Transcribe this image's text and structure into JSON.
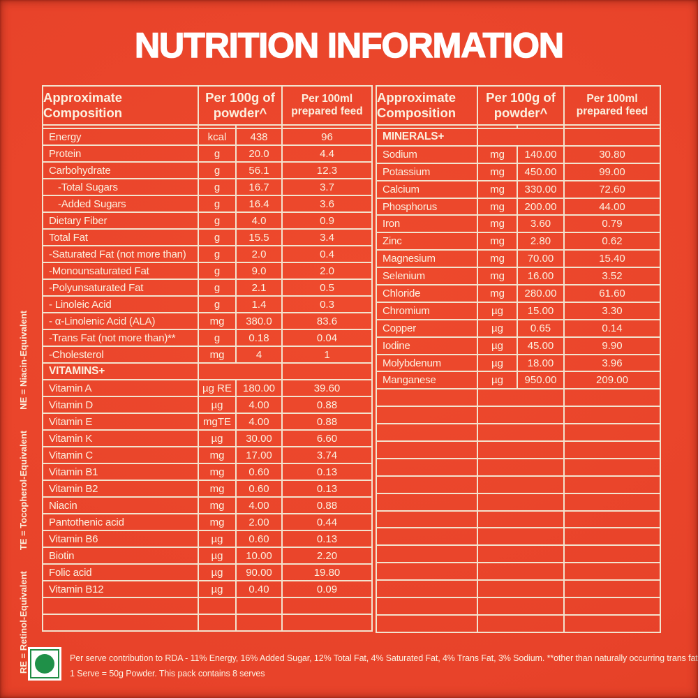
{
  "title": "NUTRITION INFORMATION",
  "colors": {
    "background": "#E8432A",
    "grid_line": "#F3E3CE",
    "text": "#FCF1E0",
    "title": "#FFFFFF",
    "veg_mark_green": "#1F9048"
  },
  "left_table": {
    "header": {
      "composition": "Approximate\nComposition",
      "per_100g": "Per 100g of\npowder^",
      "per_100ml": "Per 100ml\nprepared feed"
    },
    "rows": [
      {
        "type": "data",
        "name": "Energy",
        "unit": "kcal",
        "per_100g": "438",
        "per_100ml": "96"
      },
      {
        "type": "data",
        "name": "Protein",
        "unit": "g",
        "per_100g": "20.0",
        "per_100ml": "4.4"
      },
      {
        "type": "data",
        "name": "Carbohydrate",
        "unit": "g",
        "per_100g": "56.1",
        "per_100ml": "12.3"
      },
      {
        "type": "data",
        "name": "-Total Sugars",
        "unit": "g",
        "per_100g": "16.7",
        "per_100ml": "3.7",
        "indent": true
      },
      {
        "type": "data",
        "name": "-Added Sugars",
        "unit": "g",
        "per_100g": "16.4",
        "per_100ml": "3.6",
        "indent": true
      },
      {
        "type": "data",
        "name": "Dietary Fiber",
        "unit": "g",
        "per_100g": "4.0",
        "per_100ml": "0.9"
      },
      {
        "type": "data",
        "name": "Total Fat",
        "unit": "g",
        "per_100g": "15.5",
        "per_100ml": "3.4"
      },
      {
        "type": "data",
        "name": "-Saturated Fat (not more than)",
        "unit": "g",
        "per_100g": "2.0",
        "per_100ml": "0.4"
      },
      {
        "type": "data",
        "name": "-Monounsaturated Fat",
        "unit": "g",
        "per_100g": "9.0",
        "per_100ml": "2.0"
      },
      {
        "type": "data",
        "name": "-Polyunsaturated Fat",
        "unit": "g",
        "per_100g": "2.1",
        "per_100ml": "0.5"
      },
      {
        "type": "data",
        "name": "- Linoleic Acid",
        "unit": "g",
        "per_100g": "1.4",
        "per_100ml": "0.3"
      },
      {
        "type": "data",
        "name": "- α-Linolenic Acid (ALA)",
        "unit": "mg",
        "per_100g": "380.0",
        "per_100ml": "83.6"
      },
      {
        "type": "data",
        "name": "-Trans Fat (not more than)**",
        "unit": "g",
        "per_100g": "0.18",
        "per_100ml": "0.04"
      },
      {
        "type": "data",
        "name": "-Cholesterol",
        "unit": "mg",
        "per_100g": "4",
        "per_100ml": "1"
      },
      {
        "type": "section",
        "name": "VITAMINS+"
      },
      {
        "type": "data",
        "name": "Vitamin A",
        "unit": "µg RE",
        "per_100g": "180.00",
        "per_100ml": "39.60"
      },
      {
        "type": "data",
        "name": "Vitamin D",
        "unit": "µg",
        "per_100g": "4.00",
        "per_100ml": "0.88"
      },
      {
        "type": "data",
        "name": "Vitamin E",
        "unit": "mgTE",
        "per_100g": "4.00",
        "per_100ml": "0.88"
      },
      {
        "type": "data",
        "name": "Vitamin K",
        "unit": "µg",
        "per_100g": "30.00",
        "per_100ml": "6.60"
      },
      {
        "type": "data",
        "name": "Vitamin C",
        "unit": "mg",
        "per_100g": "17.00",
        "per_100ml": "3.74"
      },
      {
        "type": "data",
        "name": "Vitamin B1",
        "unit": "mg",
        "per_100g": "0.60",
        "per_100ml": "0.13"
      },
      {
        "type": "data",
        "name": "Vitamin B2",
        "unit": "mg",
        "per_100g": "0.60",
        "per_100ml": "0.13"
      },
      {
        "type": "data",
        "name": "Niacin",
        "unit": "mg",
        "per_100g": "4.00",
        "per_100ml": "0.88"
      },
      {
        "type": "data",
        "name": "Pantothenic acid",
        "unit": "mg",
        "per_100g": "2.00",
        "per_100ml": "0.44"
      },
      {
        "type": "data",
        "name": "Vitamin B6",
        "unit": "µg",
        "per_100g": "0.60",
        "per_100ml": "0.13"
      },
      {
        "type": "data",
        "name": "Biotin",
        "unit": "µg",
        "per_100g": "10.00",
        "per_100ml": "2.20"
      },
      {
        "type": "data",
        "name": "Folic acid",
        "unit": "µg",
        "per_100g": "90.00",
        "per_100ml": "19.80"
      },
      {
        "type": "data",
        "name": "Vitamin B12",
        "unit": "µg",
        "per_100g": "0.40",
        "per_100ml": "0.09"
      },
      {
        "type": "empty"
      },
      {
        "type": "empty"
      }
    ]
  },
  "right_table": {
    "header": {
      "composition": "Approximate\nComposition",
      "per_100g": "Per 100g of\npowder^",
      "per_100ml": "Per 100ml\nprepared feed"
    },
    "rows": [
      {
        "type": "section",
        "name": "MINERALS+"
      },
      {
        "type": "data",
        "name": "Sodium",
        "unit": "mg",
        "per_100g": "140.00",
        "per_100ml": "30.80"
      },
      {
        "type": "data",
        "name": "Potassium",
        "unit": "mg",
        "per_100g": "450.00",
        "per_100ml": "99.00"
      },
      {
        "type": "data",
        "name": "Calcium",
        "unit": "mg",
        "per_100g": "330.00",
        "per_100ml": "72.60"
      },
      {
        "type": "data",
        "name": "Phosphorus",
        "unit": "mg",
        "per_100g": "200.00",
        "per_100ml": "44.00"
      },
      {
        "type": "data",
        "name": "Iron",
        "unit": "mg",
        "per_100g": "3.60",
        "per_100ml": "0.79"
      },
      {
        "type": "data",
        "name": "Zinc",
        "unit": "mg",
        "per_100g": "2.80",
        "per_100ml": "0.62"
      },
      {
        "type": "data",
        "name": "Magnesium",
        "unit": "mg",
        "per_100g": "70.00",
        "per_100ml": "15.40"
      },
      {
        "type": "data",
        "name": "Selenium",
        "unit": "mg",
        "per_100g": "16.00",
        "per_100ml": "3.52"
      },
      {
        "type": "data",
        "name": "Chloride",
        "unit": "mg",
        "per_100g": "280.00",
        "per_100ml": "61.60"
      },
      {
        "type": "data",
        "name": "Chromium",
        "unit": "µg",
        "per_100g": "15.00",
        "per_100ml": "3.30"
      },
      {
        "type": "data",
        "name": "Copper",
        "unit": "µg",
        "per_100g": "0.65",
        "per_100ml": "0.14"
      },
      {
        "type": "data",
        "name": "Iodine",
        "unit": "µg",
        "per_100g": "45.00",
        "per_100ml": "9.90"
      },
      {
        "type": "data",
        "name": "Molybdenum",
        "unit": "µg",
        "per_100g": "18.00",
        "per_100ml": "3.96"
      },
      {
        "type": "data",
        "name": "Manganese",
        "unit": "µg",
        "per_100g": "950.00",
        "per_100ml": "209.00"
      },
      {
        "type": "empty"
      },
      {
        "type": "empty"
      },
      {
        "type": "empty"
      },
      {
        "type": "empty"
      },
      {
        "type": "empty"
      },
      {
        "type": "empty"
      },
      {
        "type": "empty"
      },
      {
        "type": "empty"
      },
      {
        "type": "empty"
      },
      {
        "type": "empty"
      },
      {
        "type": "empty"
      },
      {
        "type": "empty"
      },
      {
        "type": "empty"
      },
      {
        "type": "empty"
      }
    ]
  },
  "side_note": {
    "re": "RE = Retinol-Equivalent",
    "te": "TE = Tocopherol-Equivalent",
    "ne": "NE = Niacin-Equivalent"
  },
  "footer": {
    "veg_mark": "vegetarian-green-dot",
    "line1": "Per serve contribution to RDA - 11% Energy, 16% Added Sugar, 12% Total Fat, 4% Saturated Fat, 4% Trans Fat, 3% Sodium. **other than naturally occurring trans fat",
    "line2": "1 Serve = 50g Powder. This pack contains 8 serves"
  }
}
